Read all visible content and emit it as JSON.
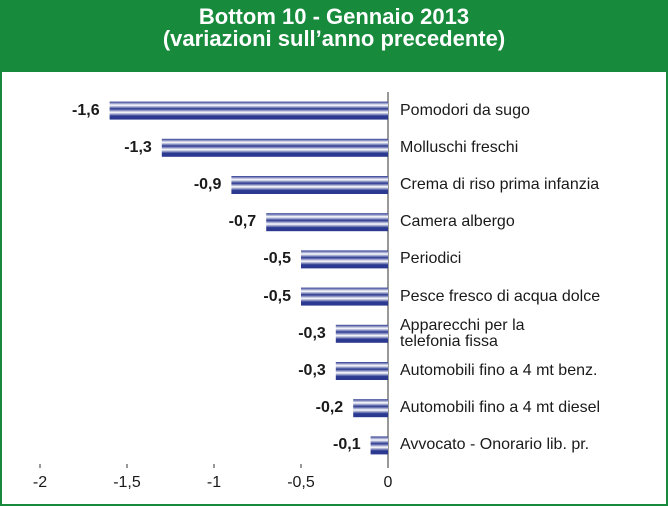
{
  "chart_data": {
    "type": "bar",
    "orientation": "horizontal",
    "title": "Bottom 10 - Gennaio 2013",
    "subtitle": "(variazioni sull’anno precedente)",
    "categories": [
      "Pomodori da sugo",
      "Molluschi freschi",
      "Crema di riso prima infanzia",
      "Camera albergo",
      "Periodici",
      "Pesce fresco di acqua dolce",
      "Apparecchi per la\ntelefonia fissa",
      "Automobili fino a 4 mt benz.",
      "Automobili fino a 4 mt diesel",
      "Avvocato - Onorario lib. pr."
    ],
    "values": [
      -1.6,
      -1.3,
      -0.9,
      -0.7,
      -0.5,
      -0.5,
      -0.3,
      -0.3,
      -0.2,
      -0.1
    ],
    "value_labels": [
      "-1,6",
      "-1,3",
      "-0,9",
      "-0,7",
      "-0,5",
      "-0,5",
      "-0,3",
      "-0,3",
      "-0,2",
      "-0,1"
    ],
    "color": "#2b3990",
    "xlim": [
      -2,
      0
    ],
    "xticks": [
      -2,
      {
        "value": -1.5,
        "label": "-1,5"
      },
      -1,
      {
        "value": -0.5,
        "label": "-0,5"
      },
      0
    ],
    "grid": false
  }
}
